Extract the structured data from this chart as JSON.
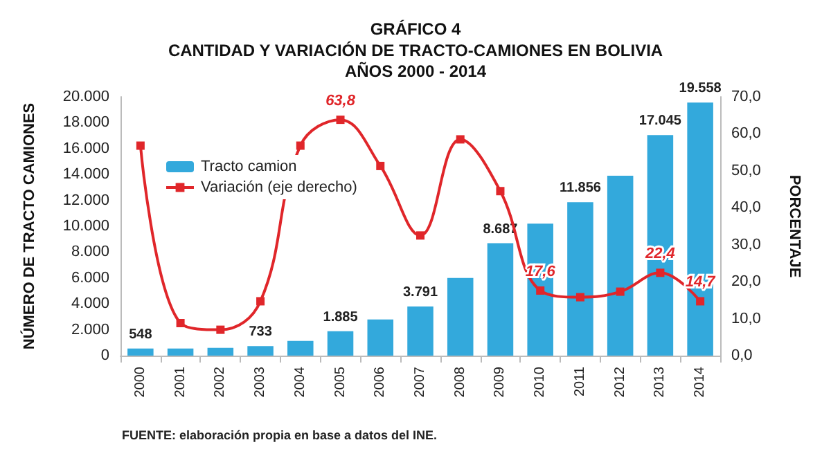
{
  "chart_data": {
    "type": "bar",
    "title": "GRÁFICO 4",
    "subtitle": "CANTIDAD Y VARIACIÓN DE TRACTO-CAMIONES EN BOLIVIA\nAÑOS 2000 - 2014",
    "ylabel": "NÚMERO DE TRACTO CAMIONES",
    "y2label": "PORCENTAJE",
    "categories": [
      "2000",
      "2001",
      "2002",
      "2003",
      "2004",
      "2005",
      "2006",
      "2007",
      "2008",
      "2009",
      "2010",
      "2011",
      "2012",
      "2013",
      "2014"
    ],
    "series": [
      {
        "name": "Tracto camion",
        "color": "#33a9dc",
        "values": [
          548,
          550,
          600,
          733,
          1130,
          1885,
          2800,
          3791,
          6000,
          8687,
          10200,
          11856,
          13900,
          17045,
          19558
        ],
        "value_labels": [
          "548",
          null,
          null,
          "733",
          null,
          "1.885",
          null,
          "3.791",
          null,
          "8.687",
          null,
          "11.856",
          null,
          "17.045",
          "19.558"
        ]
      },
      {
        "name": "Variación (eje derecho)",
        "type": "line",
        "axis": "y2",
        "color": "#e0262a",
        "values": [
          56.8,
          8.8,
          7.0,
          14.7,
          56.8,
          63.8,
          51.3,
          32.5,
          58.5,
          44.5,
          17.6,
          15.8,
          17.3,
          22.4,
          14.7
        ],
        "value_labels": [
          null,
          null,
          null,
          null,
          null,
          "63,8",
          null,
          null,
          null,
          null,
          "17,6",
          null,
          null,
          "22,4",
          "14,7"
        ]
      }
    ],
    "ylim": [
      0,
      20000
    ],
    "yticks": [
      {
        "value": 0,
        "label": "0"
      },
      {
        "value": 2000,
        "label": "2.000"
      },
      {
        "value": 4000,
        "label": "4.000"
      },
      {
        "value": 6000,
        "label": "6.000"
      },
      {
        "value": 8000,
        "label": "8.000"
      },
      {
        "value": 10000,
        "label": "10.000"
      },
      {
        "value": 12000,
        "label": "12.000"
      },
      {
        "value": 14000,
        "label": "14.000"
      },
      {
        "value": 16000,
        "label": "16.000"
      },
      {
        "value": 18000,
        "label": "18.000"
      },
      {
        "value": 20000,
        "label": "20.000"
      }
    ],
    "y2lim": [
      0,
      70
    ],
    "y2ticks": [
      {
        "value": 0,
        "label": "0,0"
      },
      {
        "value": 10,
        "label": "10,0"
      },
      {
        "value": 20,
        "label": "20,0"
      },
      {
        "value": 30,
        "label": "30,0"
      },
      {
        "value": 40,
        "label": "40,0"
      },
      {
        "value": 50,
        "label": "50,0"
      },
      {
        "value": 60,
        "label": "60,0"
      },
      {
        "value": 70,
        "label": "70,0"
      }
    ],
    "legend": "top left",
    "grid": false,
    "marker": "square",
    "line_style": "solid",
    "annotations": [
      "FUENTE: elaboración propia en base a datos del INE."
    ]
  }
}
